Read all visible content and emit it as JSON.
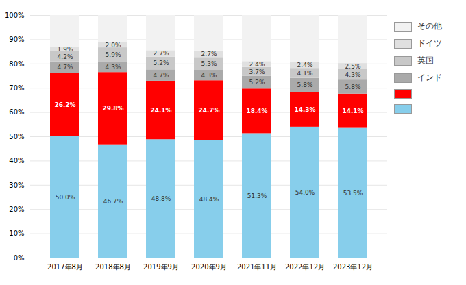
{
  "chart_data": {
    "type": "bar",
    "stacked": true,
    "categories": [
      "2017年8月",
      "2018年8月",
      "2019年9月",
      "2020年9月",
      "2021年11月",
      "2022年12月",
      "2023年12月"
    ],
    "series": [
      {
        "color": "#87CEEB",
        "values": [
          50.0,
          46.7,
          48.8,
          48.4,
          51.3,
          54.0,
          53.5
        ],
        "value_labels": [
          "50.0%",
          "46.7%",
          "48.8%",
          "48.4%",
          "51.3%",
          "54.0%",
          "53.5%"
        ]
      },
      {
        "color": "#FF0000",
        "values": [
          26.2,
          29.8,
          24.1,
          24.7,
          18.4,
          14.3,
          14.1
        ],
        "value_labels": [
          "26.2%",
          "29.8%",
          "24.1%",
          "24.7%",
          "18.4%",
          "14.3%",
          "14.1%"
        ]
      },
      {
        "name": "インド",
        "color": "#AAAAAA",
        "values": [
          4.7,
          4.3,
          4.7,
          4.3,
          5.2,
          5.8,
          5.8
        ],
        "value_labels": [
          "4.7%",
          "4.3%",
          "4.7%",
          "4.3%",
          "5.2%",
          "5.8%",
          "5.8%"
        ]
      },
      {
        "name": "英国",
        "color": "#C8C8C8",
        "values": [
          4.2,
          5.9,
          5.2,
          5.3,
          3.7,
          4.1,
          4.3
        ],
        "value_labels": [
          "4.2%",
          "5.9%",
          "5.2%",
          "5.3%",
          "3.7%",
          "4.1%",
          "4.3%"
        ]
      },
      {
        "name": "ドイツ",
        "color": "#E0E0E0",
        "values": [
          1.9,
          2.0,
          2.7,
          2.7,
          2.4,
          2.4,
          2.5
        ],
        "value_labels": [
          "1.9%",
          "2.0%",
          "2.7%",
          "2.7%",
          "2.4%",
          "2.4%",
          "2.5%"
        ]
      },
      {
        "name": "その他",
        "color": "#F2F2F2",
        "values": [
          13.0,
          11.3,
          14.5,
          14.6,
          19.0,
          19.4,
          19.8
        ]
      }
    ],
    "ylim": [
      0,
      100
    ],
    "yticks": [
      {
        "value": 0,
        "label": "0%"
      },
      {
        "value": 10,
        "label": "10%"
      },
      {
        "value": 20,
        "label": "20%"
      },
      {
        "value": 30,
        "label": "30%"
      },
      {
        "value": 40,
        "label": "40%"
      },
      {
        "value": 50,
        "label": "50%"
      },
      {
        "value": 60,
        "label": "60%"
      },
      {
        "value": 70,
        "label": "70%"
      },
      {
        "value": 80,
        "label": "80%"
      },
      {
        "value": 90,
        "label": "90%"
      },
      {
        "value": 100,
        "label": "100%"
      }
    ],
    "grid": true,
    "data_labels": true,
    "legend": "right"
  }
}
